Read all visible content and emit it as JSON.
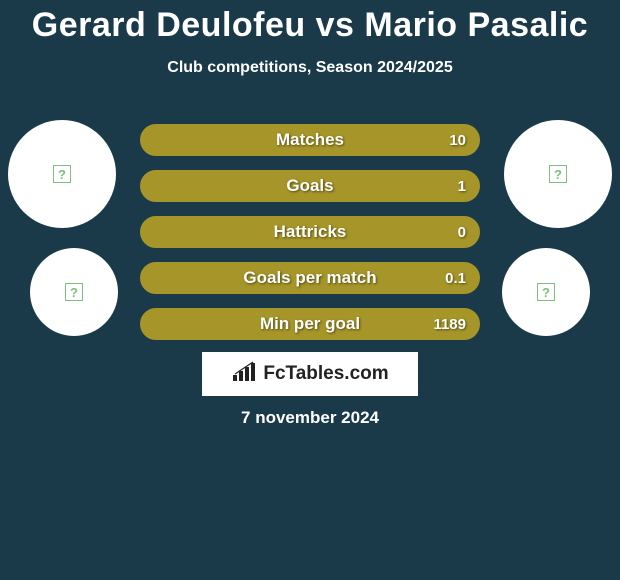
{
  "title": "Gerard Deulofeu vs Mario Pasalic",
  "subtitle": "Club competitions, Season 2024/2025",
  "date": "7 november 2024",
  "brand": "FcTables.com",
  "colors": {
    "background": "#1a3a4a",
    "stat_fill": "#a69528",
    "stat_border": "#a69528",
    "avatar_bg": "#ffffff",
    "brand_bg": "#ffffff",
    "brand_text": "#222222",
    "placeholder_border": "#7fbf7f"
  },
  "stats": [
    {
      "label": "Matches",
      "value": "10",
      "fill_pct": 100
    },
    {
      "label": "Goals",
      "value": "1",
      "fill_pct": 100
    },
    {
      "label": "Hattricks",
      "value": "0",
      "fill_pct": 100
    },
    {
      "label": "Goals per match",
      "value": "0.1",
      "fill_pct": 100
    },
    {
      "label": "Min per goal",
      "value": "1189",
      "fill_pct": 100
    }
  ],
  "avatars": {
    "left": [
      {
        "size": "big"
      },
      {
        "size": "small"
      }
    ],
    "right": [
      {
        "size": "big"
      },
      {
        "size": "small"
      }
    ]
  }
}
